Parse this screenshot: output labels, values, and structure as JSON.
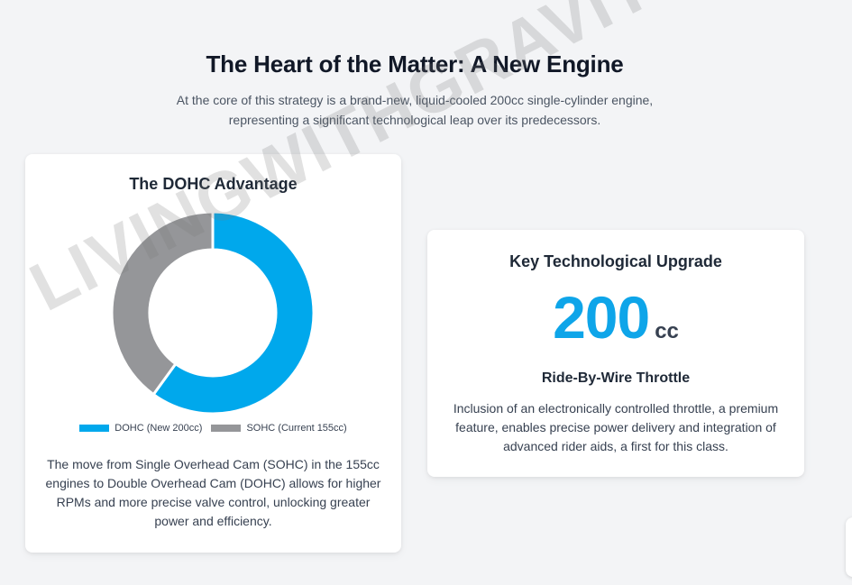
{
  "header": {
    "title": "The Heart of the Matter: A New Engine",
    "subtitle": "At the core of this strategy is a brand-new, liquid-cooled 200cc single-cylinder engine, representing a significant technological leap over its predecessors."
  },
  "left_card": {
    "title": "The DOHC Advantage",
    "description": "The move from Single Overhead Cam (SOHC) in the 155cc engines to Double Overhead Cam (DOHC) allows for higher RPMs and more precise valve control, unlocking greater power and efficiency."
  },
  "right_card": {
    "title": "Key Technological Upgrade",
    "figure_value": "200",
    "figure_unit": "cc",
    "feature_title": "Ride-By-Wire Throttle",
    "feature_description": "Inclusion of an electronically controlled throttle, a premium feature, enables precise power delivery and integration of advanced rider aids, a first for this class."
  },
  "watermark": {
    "text": "LIVINGWITHGRAVITY"
  },
  "chart_data": {
    "type": "pie",
    "variant": "doughnut",
    "title": "",
    "categories": [
      "DOHC (New 200cc)",
      "SOHC (Current 155cc)"
    ],
    "values": [
      60,
      40
    ],
    "colors": [
      "#00a8ec",
      "#959699"
    ],
    "legend_position": "bottom"
  }
}
